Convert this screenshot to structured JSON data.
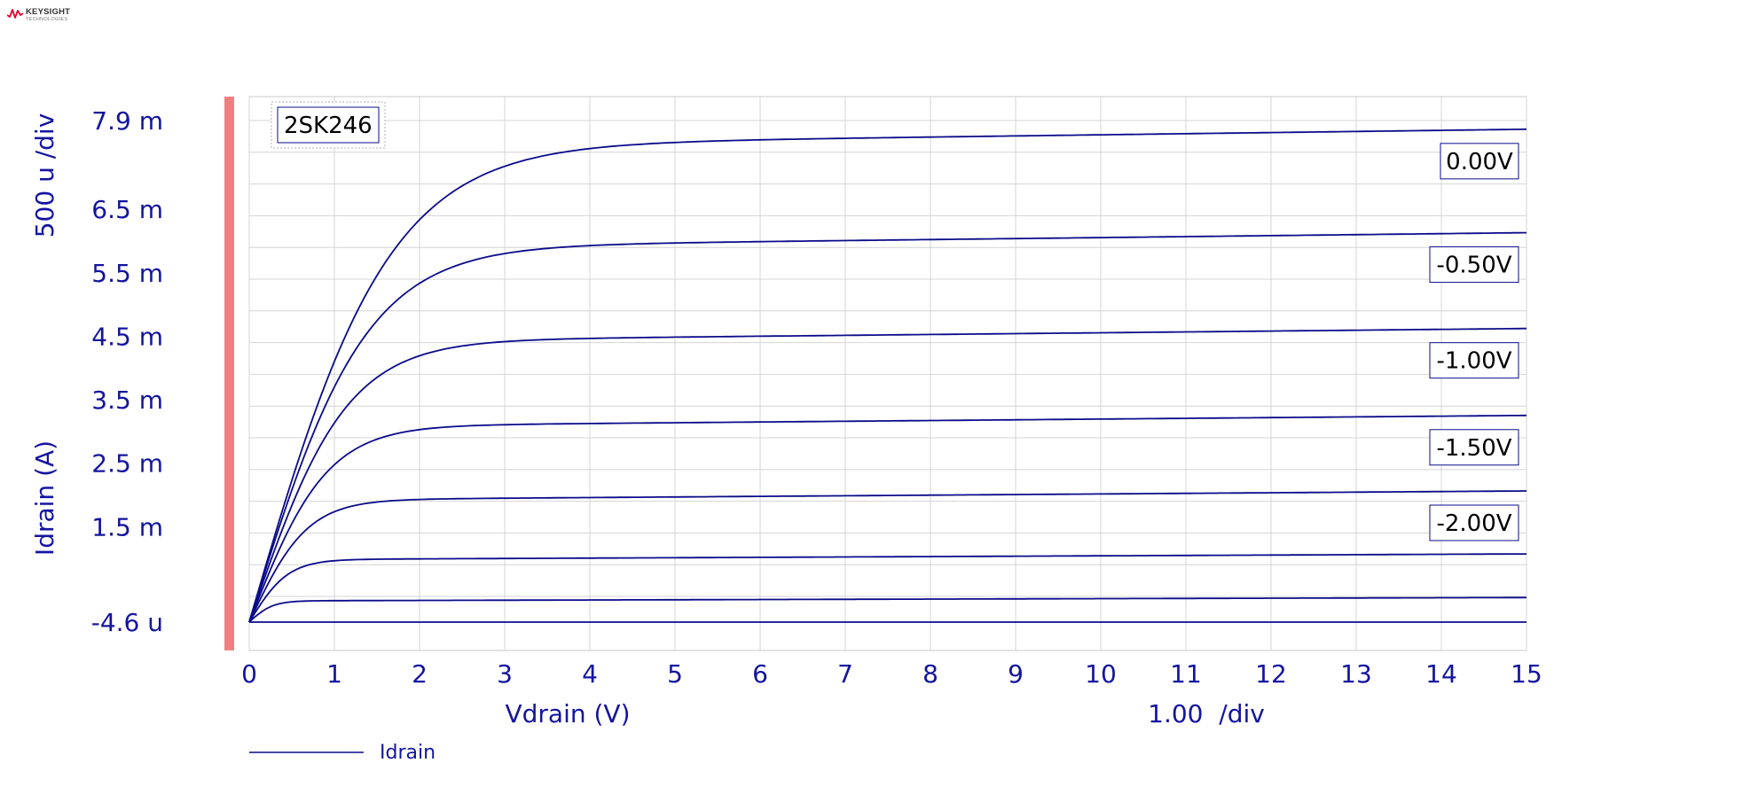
{
  "logo": {
    "brand": "KEYSIGHT",
    "sub": "TECHNOLOGIES",
    "color": "#e4002b"
  },
  "chart_data": {
    "type": "line",
    "title": "",
    "device_label": "2SK246",
    "xlabel": "Vdrain (V)",
    "x_div_label": "1.00  /div",
    "ylabel": "Idrain (A)",
    "y_div_label": "500 u /div",
    "xlim": [
      0,
      15
    ],
    "x_ticks": [
      "0",
      "1",
      "2",
      "3",
      "4",
      "5",
      "6",
      "7",
      "8",
      "9",
      "10",
      "11",
      "12",
      "13",
      "14",
      "15"
    ],
    "ylim": [
      -4.6e-06,
      0.0079
    ],
    "y_ticks": [
      {
        "value": 0.0079,
        "label": "7.9 m"
      },
      {
        "value": 0.0065,
        "label": "6.5 m"
      },
      {
        "value": 0.0055,
        "label": "5.5 m"
      },
      {
        "value": 0.0045,
        "label": "4.5 m"
      },
      {
        "value": 0.0035,
        "label": "3.5 m"
      },
      {
        "value": 0.0025,
        "label": "2.5 m"
      },
      {
        "value": 0.0015,
        "label": "1.5 m"
      },
      {
        "value": -4.6e-06,
        "label": "-4.6 u"
      }
    ],
    "x_grid": [
      0,
      1,
      2,
      3,
      4,
      5,
      6,
      7,
      8,
      9,
      10,
      11,
      12,
      13,
      14,
      15
    ],
    "y_grid": [
      -4.6e-06,
      0.0004,
      0.0009,
      0.0014,
      0.0019,
      0.0024,
      0.0029,
      0.0034,
      0.0039,
      0.0044,
      0.0049,
      0.0054,
      0.0059,
      0.0064,
      0.0069,
      0.0074,
      0.0079
    ],
    "grid": true,
    "line_color": "#0b0b8a",
    "legend": {
      "placement": "bottom-left",
      "entries": [
        "Idrain"
      ]
    },
    "x": [
      0,
      0.25,
      0.5,
      0.75,
      1,
      1.25,
      1.5,
      1.75,
      2,
      2.25,
      2.5,
      2.75,
      3,
      3.25,
      3.5,
      3.75,
      4,
      4.5,
      5,
      5.5,
      6,
      6.5,
      7,
      7.5,
      8,
      8.5,
      9,
      9.5,
      10,
      11,
      12,
      13,
      14,
      15
    ],
    "series": [
      {
        "label": "0.00V",
        "idss": 0.0075,
        "vsat": 3.6,
        "slope": 1.75e-05
      },
      {
        "label": "-0.50V",
        "idss": 0.0059,
        "vsat": 3.0,
        "slope": 1.55e-05
      },
      {
        "label": "-1.00V",
        "idss": 0.00442,
        "vsat": 2.5,
        "slope": 1.35e-05
      },
      {
        "label": "-1.50V",
        "idss": 0.00308,
        "vsat": 2.0,
        "slope": 1.15e-05
      },
      {
        "label": "-2.00V",
        "idss": 0.00192,
        "vsat": 1.5,
        "slope": 9.5e-06
      },
      {
        "label": "",
        "idss": 0.00098,
        "vsat": 1.0,
        "slope": 6e-06
      },
      {
        "label": "",
        "idss": 0.00033,
        "vsat": 0.6,
        "slope": 3.5e-06
      },
      {
        "label": "",
        "idss": -4.6e-06,
        "vsat": 0.5,
        "slope": 0
      }
    ],
    "marker_band_color": "#f08080"
  }
}
